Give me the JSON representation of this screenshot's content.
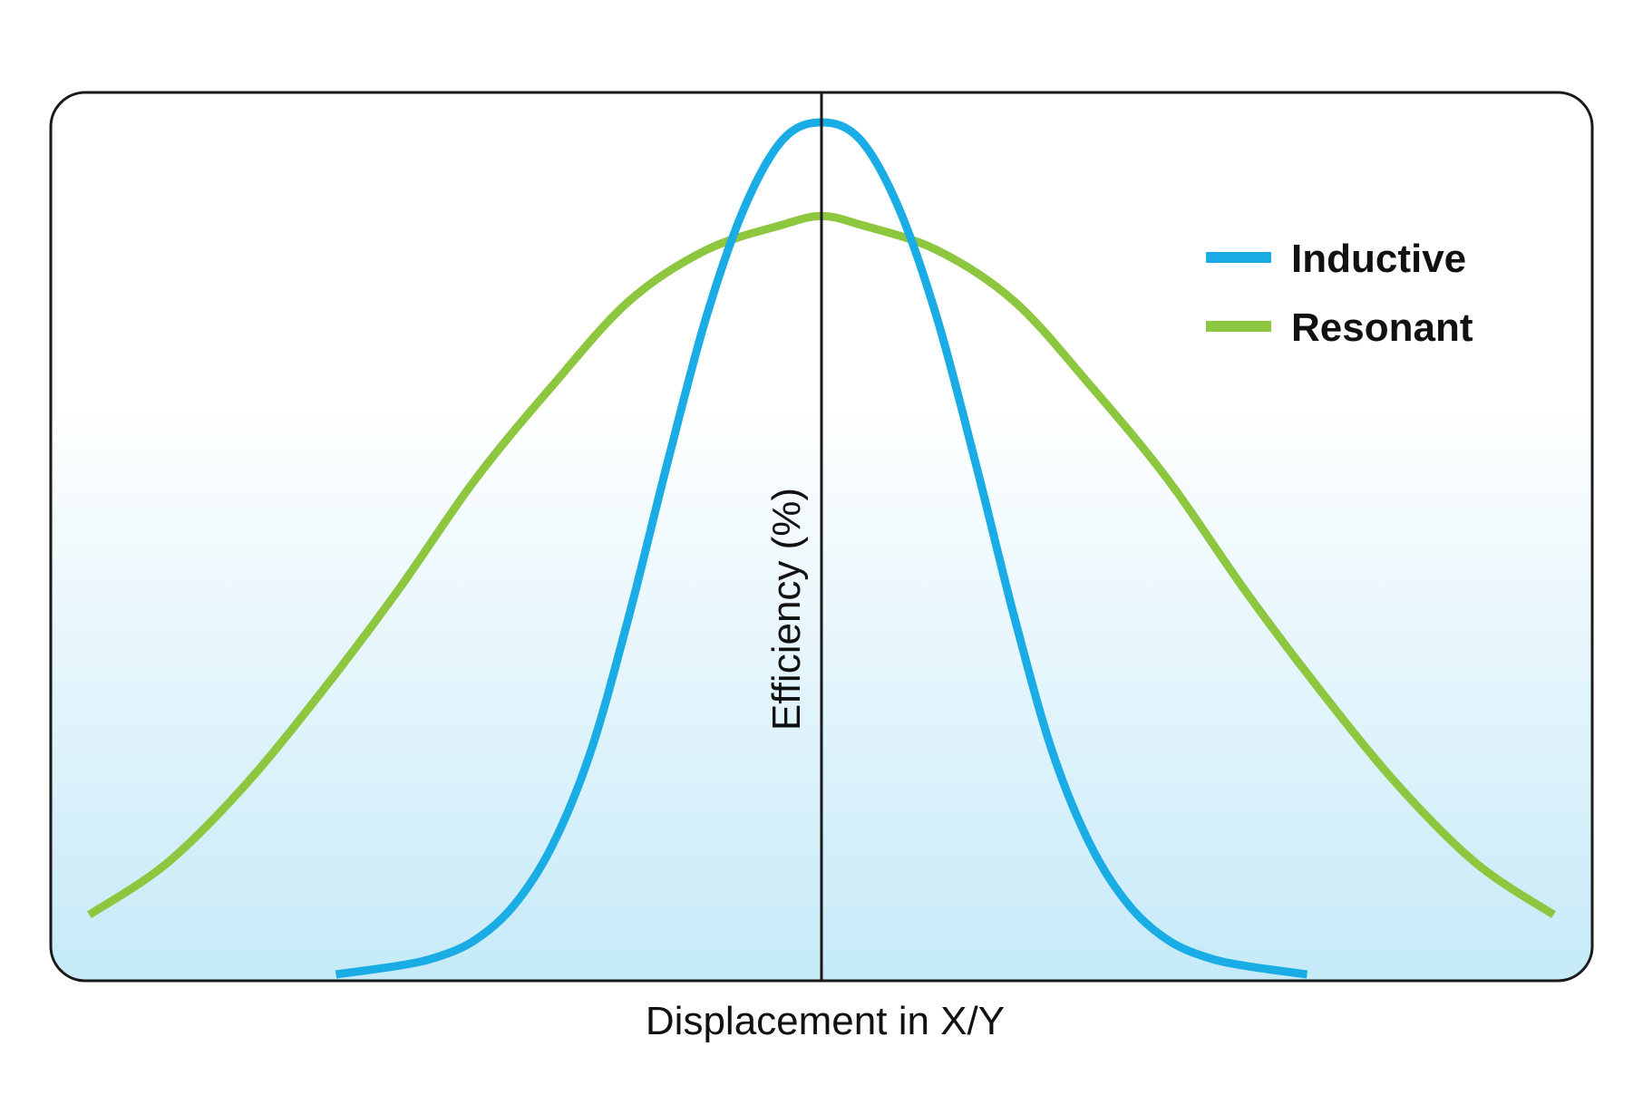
{
  "chart_data": {
    "type": "line",
    "title": "",
    "xlabel": "Displacement in X/Y",
    "ylabel": "Efficiency (%)",
    "xlim": [
      -1.0,
      1.0
    ],
    "ylim": [
      0,
      1.0
    ],
    "grid": false,
    "legend_position": "top-right",
    "series": [
      {
        "name": "Inductive",
        "color": "#1aace5",
        "x": [
          -0.63,
          -0.55,
          -0.5,
          -0.45,
          -0.4,
          -0.35,
          -0.3,
          -0.25,
          -0.2,
          -0.15,
          -0.1,
          -0.05,
          0.0,
          0.05,
          0.1,
          0.15,
          0.2,
          0.25,
          0.3,
          0.35,
          0.4,
          0.45,
          0.5,
          0.55,
          0.63
        ],
        "y": [
          0.0,
          0.01,
          0.02,
          0.04,
          0.08,
          0.15,
          0.26,
          0.42,
          0.6,
          0.77,
          0.9,
          0.98,
          1.0,
          0.98,
          0.9,
          0.77,
          0.6,
          0.42,
          0.26,
          0.15,
          0.08,
          0.04,
          0.02,
          0.01,
          0.0
        ]
      },
      {
        "name": "Resonant",
        "color": "#8dc63f",
        "x": [
          -0.95,
          -0.85,
          -0.75,
          -0.65,
          -0.55,
          -0.45,
          -0.35,
          -0.25,
          -0.15,
          -0.05,
          0.0,
          0.05,
          0.15,
          0.25,
          0.35,
          0.45,
          0.55,
          0.65,
          0.75,
          0.85,
          0.95
        ],
        "y": [
          0.07,
          0.13,
          0.22,
          0.33,
          0.45,
          0.58,
          0.69,
          0.79,
          0.85,
          0.88,
          0.89,
          0.88,
          0.85,
          0.79,
          0.69,
          0.58,
          0.45,
          0.33,
          0.22,
          0.13,
          0.07
        ]
      }
    ]
  },
  "colors": {
    "frame": "#1a1a1a",
    "background_top": "#ffffff",
    "background_bottom": "#c6eaf8"
  }
}
